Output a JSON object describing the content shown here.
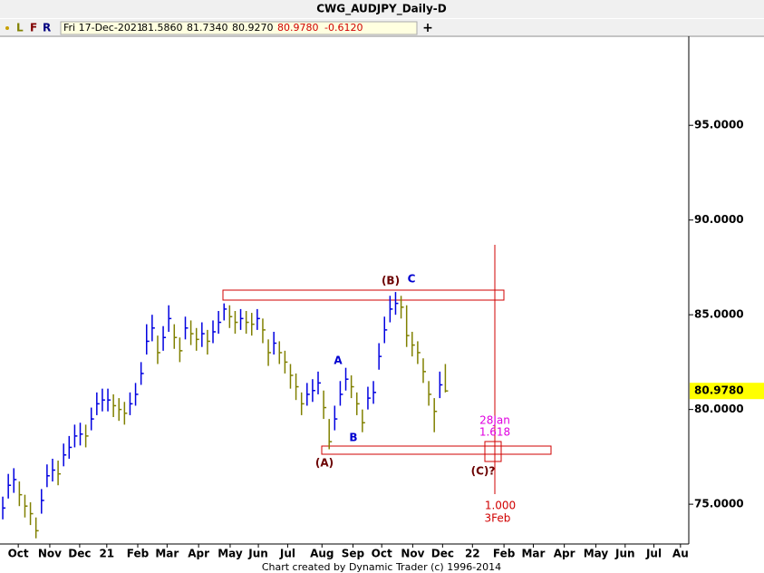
{
  "header": {
    "title": "CWG_AUDJPY_Daily-D",
    "toolbar": [
      "L",
      "F",
      "R"
    ],
    "info": [
      "Fri 17-Dec-2021",
      "81.5860",
      "81.7340",
      "80.9270",
      "80.9780",
      "-0.6120"
    ],
    "add": "+"
  },
  "chart_data": {
    "type": "hlc-bar",
    "up_color": "#0000e0",
    "down_color": "#808000",
    "high": [
      75.4,
      76.6,
      76.9,
      76.2,
      75.5,
      75.1,
      74.3,
      75.8,
      77.1,
      77.4,
      77.3,
      78.2,
      78.6,
      79.2,
      79.3,
      79.2,
      80.1,
      80.9,
      81.1,
      81.1,
      80.8,
      80.6,
      80.4,
      80.9,
      81.4,
      82.5,
      84.5,
      85.0,
      83.9,
      84.4,
      85.5,
      84.5,
      83.8,
      84.9,
      84.7,
      84.3,
      84.6,
      84.2,
      84.7,
      85.2,
      85.6,
      85.5,
      85.2,
      85.3,
      85.2,
      85.1,
      85.3,
      84.8,
      83.7,
      84.1,
      83.6,
      83.1,
      82.4,
      81.9,
      80.9,
      81.4,
      81.6,
      82.0,
      81.0,
      79.5,
      80.2,
      81.5,
      82.2,
      81.8,
      80.9,
      80.0,
      81.2,
      81.5,
      83.5,
      84.9,
      86.0,
      86.2,
      86.0,
      85.5,
      84.1,
      83.6,
      82.7,
      81.5,
      80.6,
      82.0,
      82.4
    ],
    "low": [
      74.2,
      75.3,
      75.6,
      74.9,
      74.3,
      73.9,
      73.2,
      74.5,
      75.9,
      76.2,
      76.0,
      77.0,
      77.4,
      78.0,
      78.1,
      78.0,
      78.9,
      79.7,
      79.9,
      79.9,
      79.6,
      79.4,
      79.2,
      79.7,
      80.2,
      81.3,
      82.9,
      83.6,
      82.4,
      83.1,
      84.1,
      83.2,
      82.5,
      83.7,
      83.4,
      83.1,
      83.3,
      82.9,
      83.5,
      84.0,
      84.7,
      84.3,
      84.0,
      84.2,
      84.0,
      83.9,
      84.2,
      83.5,
      82.3,
      82.9,
      82.4,
      81.9,
      81.1,
      80.5,
      79.7,
      80.2,
      80.4,
      80.8,
      79.5,
      77.9,
      78.9,
      80.2,
      81.0,
      80.6,
      79.7,
      78.8,
      80.0,
      80.3,
      82.1,
      83.5,
      84.6,
      85.0,
      84.8,
      83.3,
      82.8,
      82.4,
      81.4,
      80.2,
      78.8,
      80.6,
      80.9
    ],
    "close": [
      74.8,
      76.0,
      76.3,
      75.5,
      74.9,
      74.5,
      73.6,
      75.2,
      76.5,
      76.8,
      76.6,
      77.6,
      78.0,
      78.6,
      78.7,
      78.6,
      79.5,
      80.3,
      80.5,
      80.5,
      80.2,
      80.0,
      79.8,
      80.3,
      80.8,
      81.9,
      83.6,
      84.3,
      83.0,
      83.8,
      84.8,
      83.8,
      83.1,
      84.3,
      84.0,
      83.7,
      84.0,
      83.6,
      84.1,
      84.6,
      85.3,
      84.9,
      84.6,
      84.8,
      84.6,
      84.5,
      84.8,
      84.2,
      83.0,
      83.5,
      83.0,
      82.5,
      81.8,
      81.2,
      80.3,
      80.8,
      81.0,
      81.4,
      80.1,
      78.3,
      79.5,
      80.8,
      81.6,
      81.2,
      80.3,
      79.3,
      80.6,
      80.9,
      82.8,
      84.2,
      85.3,
      85.6,
      85.4,
      83.9,
      83.4,
      83.0,
      82.0,
      80.8,
      79.9,
      81.3,
      80.978
    ],
    "xlim": [
      -0.5,
      124
    ],
    "xticks": [
      {
        "value": 2.8,
        "label": "Oct"
      },
      {
        "value": 8.5,
        "label": "Nov"
      },
      {
        "value": 13.9,
        "label": "Dec"
      },
      {
        "value": 18.8,
        "label": "21"
      },
      {
        "value": 24.4,
        "label": "Feb"
      },
      {
        "value": 29.7,
        "label": "Mar"
      },
      {
        "value": 35.4,
        "label": "Apr"
      },
      {
        "value": 41.1,
        "label": "May"
      },
      {
        "value": 46.2,
        "label": "Jun"
      },
      {
        "value": 51.5,
        "label": "Jul"
      },
      {
        "value": 57.7,
        "label": "Aug"
      },
      {
        "value": 63.3,
        "label": "Sep"
      },
      {
        "value": 68.5,
        "label": "Oct"
      },
      {
        "value": 74.1,
        "label": "Nov"
      },
      {
        "value": 79.5,
        "label": "Dec"
      },
      {
        "value": 84.9,
        "label": "22"
      },
      {
        "value": 90.6,
        "label": "Feb"
      },
      {
        "value": 95.9,
        "label": "Mar"
      },
      {
        "value": 101.5,
        "label": "Apr"
      },
      {
        "value": 107.2,
        "label": "May"
      },
      {
        "value": 112.5,
        "label": "Jun"
      },
      {
        "value": 117.7,
        "label": "Jul"
      },
      {
        "value": 122.5,
        "label": "Au"
      }
    ],
    "ylim": [
      72.9,
      99.7
    ],
    "yticks": [
      {
        "value": 75,
        "label": "75.0000"
      },
      {
        "value": 80,
        "label": "80.0000"
      },
      {
        "value": 85,
        "label": "85.0000"
      },
      {
        "value": 90,
        "label": "90.0000"
      },
      {
        "value": 95,
        "label": "95.0000"
      }
    ],
    "last_price": {
      "value": 80.978,
      "label": "80.9780"
    },
    "annotations": [
      "(B)",
      "C",
      "A",
      "B",
      "(A)",
      "28Jan",
      "1.618",
      "(C)?",
      "1.000",
      "3Feb"
    ]
  },
  "footer": "Chart created by Dynamic Trader  (c) 1996-2014"
}
